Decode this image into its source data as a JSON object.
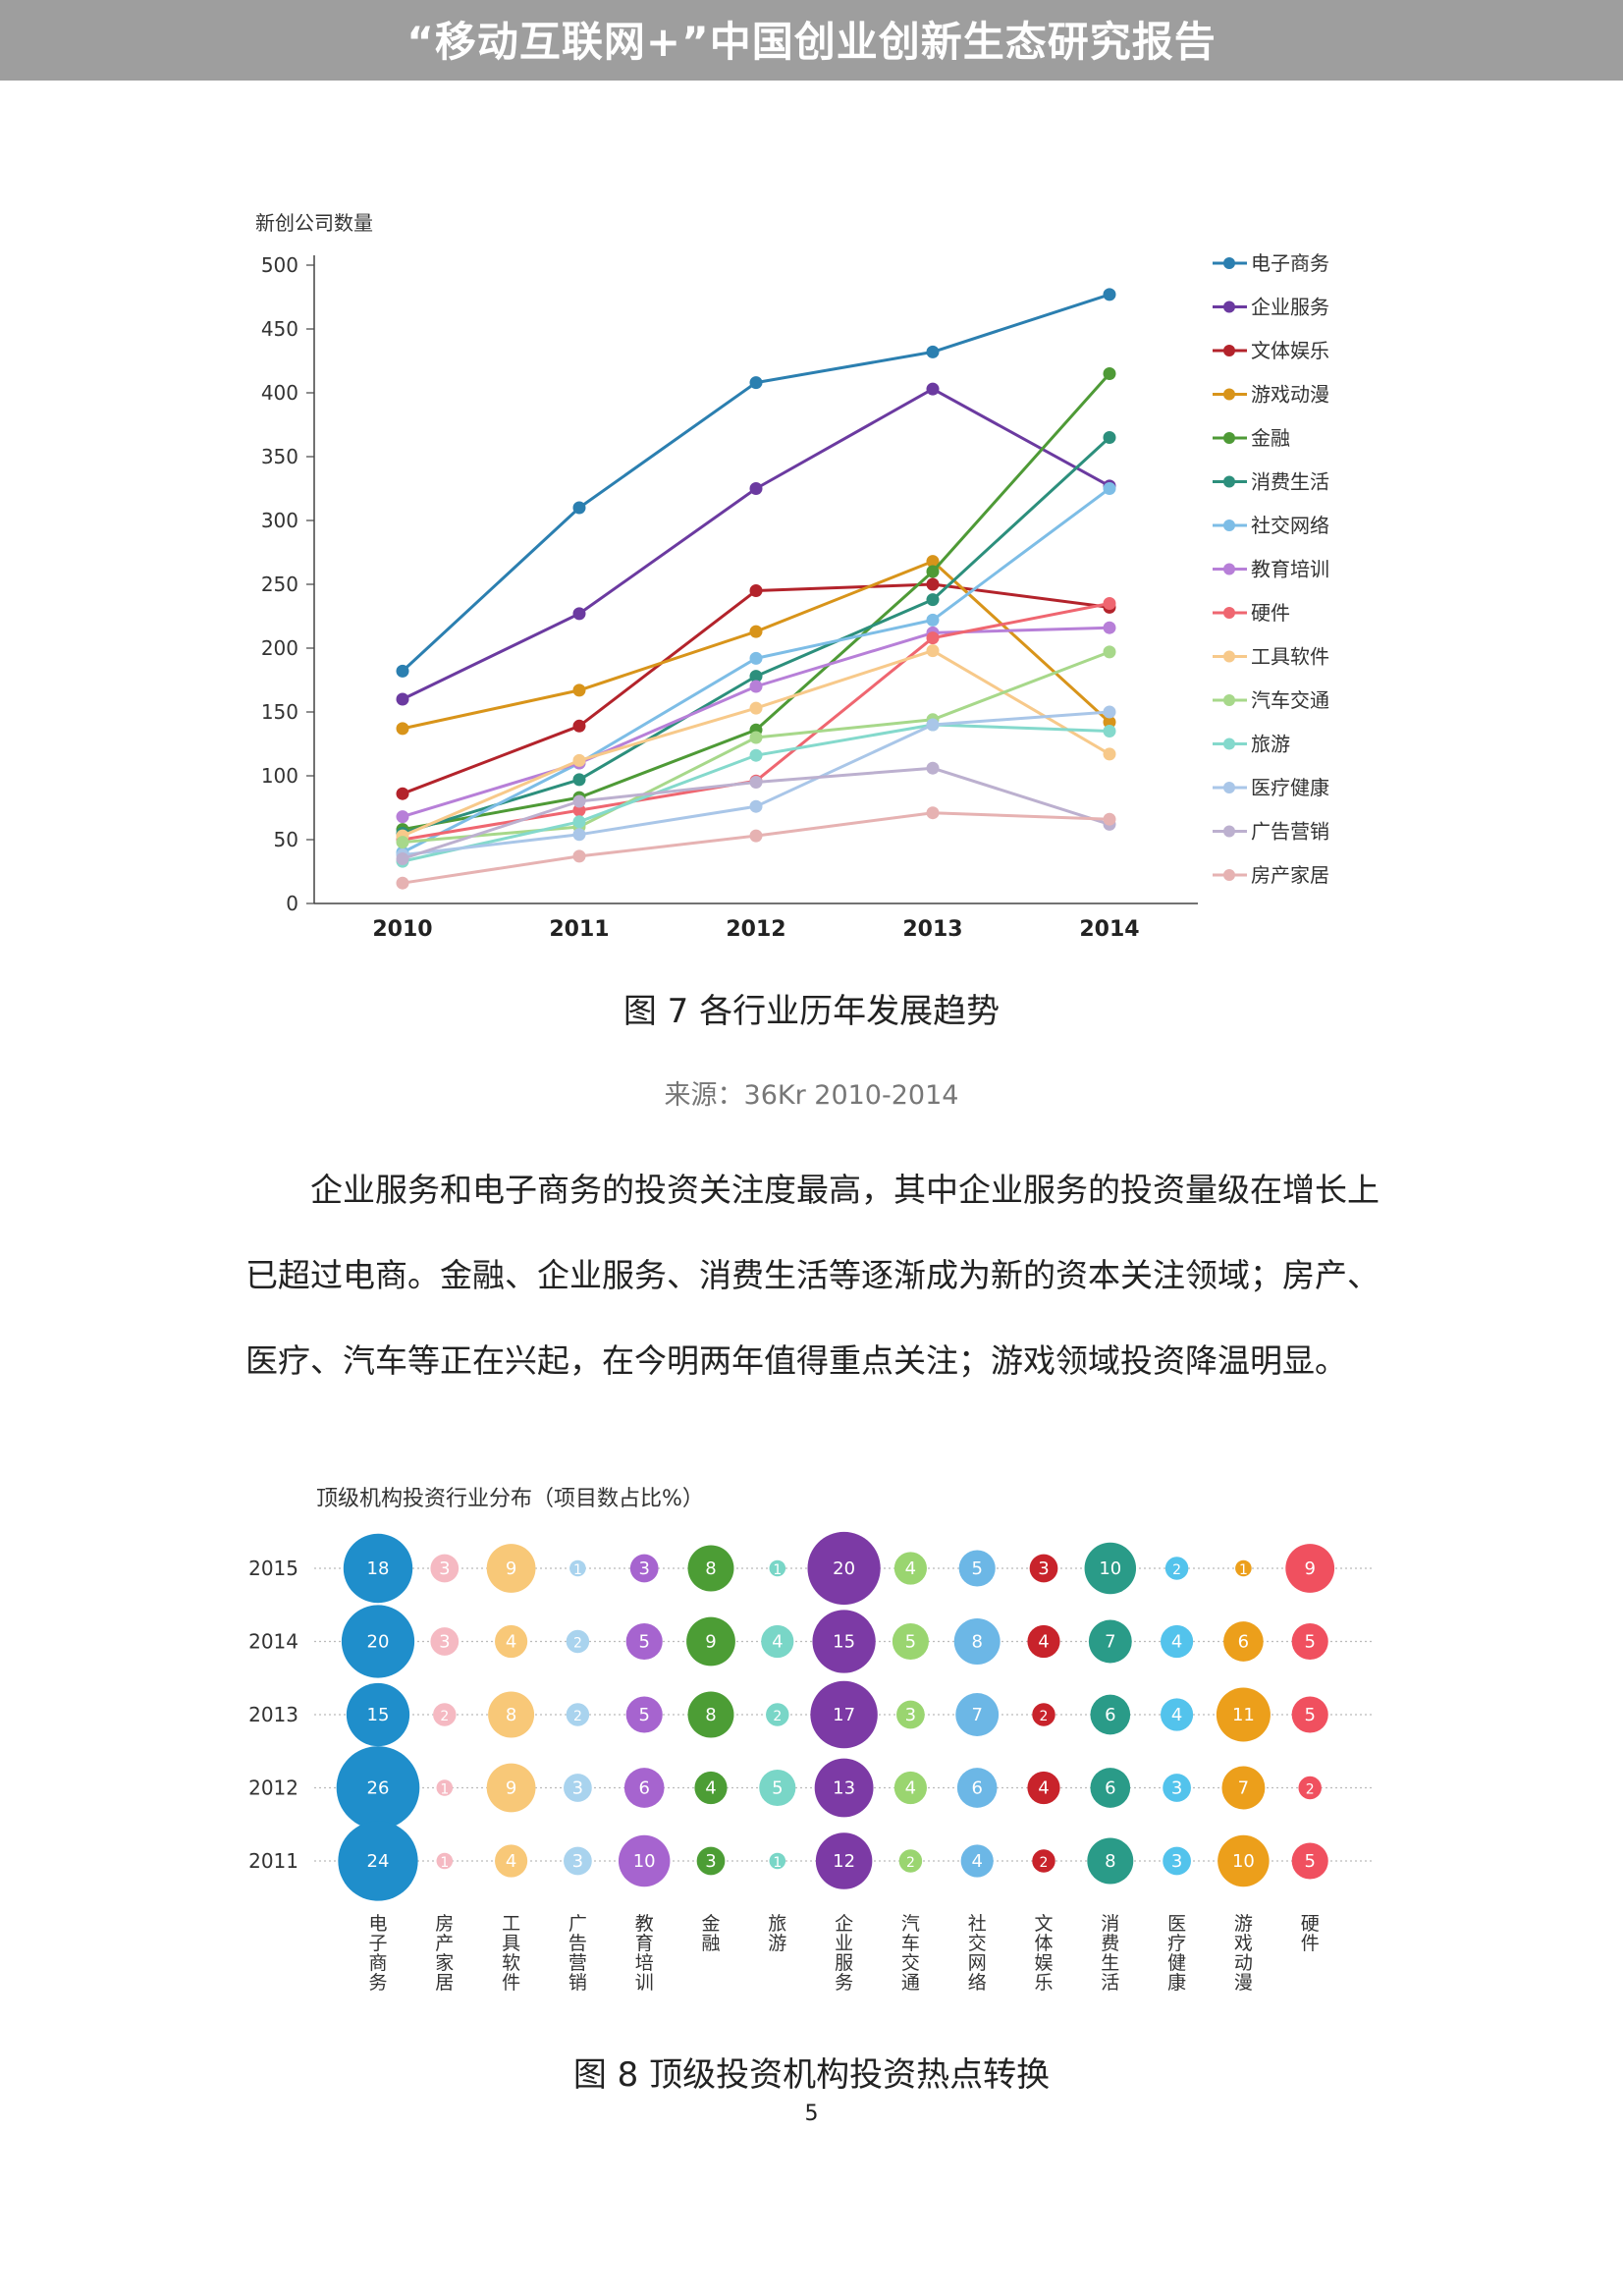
{
  "header": {
    "title": "“移动互联网+”中国创业创新生态研究报告"
  },
  "figure7": {
    "caption": "图 7  各行业历年发展趋势",
    "source": "来源：36Kr 2010-2014"
  },
  "paragraph": "企业服务和电子商务的投资关注度最高，其中企业服务的投资量级在增长上已超过电商。金融、企业服务、消费生活等逐渐成为新的资本关注领域；房产、医疗、汽车等正在兴起，在今明两年值得重点关注；游戏领域投资降温明显。",
  "figure8": {
    "caption": "图 8  顶级投资机构投资热点转换"
  },
  "page_number": "5",
  "chart_data": [
    {
      "type": "line",
      "title": "",
      "ylabel": "新创公司数量",
      "xlabel": "",
      "ylim": [
        0,
        500
      ],
      "yticks": [
        0,
        50,
        100,
        150,
        200,
        250,
        300,
        350,
        400,
        450,
        500
      ],
      "grid": false,
      "legend": "right",
      "x": [
        "2010",
        "2011",
        "2012",
        "2013",
        "2014"
      ],
      "series": [
        {
          "name": "电子商务",
          "color": "#2b7fb0",
          "values": [
            182,
            310,
            408,
            432,
            477
          ]
        },
        {
          "name": "企业服务",
          "color": "#6b3aa0",
          "values": [
            160,
            227,
            325,
            403,
            327
          ]
        },
        {
          "name": "文体娱乐",
          "color": "#b3232b",
          "values": [
            86,
            139,
            245,
            250,
            232
          ]
        },
        {
          "name": "游戏动漫",
          "color": "#d8941a",
          "values": [
            137,
            167,
            213,
            268,
            142
          ]
        },
        {
          "name": "金融",
          "color": "#4e9a36",
          "values": [
            58,
            83,
            136,
            260,
            415
          ]
        },
        {
          "name": "消费生活",
          "color": "#2c8f7c",
          "values": [
            55,
            97,
            178,
            238,
            365
          ]
        },
        {
          "name": "社交网络",
          "color": "#7dbde6",
          "values": [
            40,
            110,
            192,
            222,
            325
          ]
        },
        {
          "name": "教育培训",
          "color": "#b77fd8",
          "values": [
            68,
            110,
            170,
            212,
            216
          ]
        },
        {
          "name": "硬件",
          "color": "#ef6670",
          "values": [
            50,
            73,
            96,
            208,
            235
          ]
        },
        {
          "name": "工具软件",
          "color": "#f7c98a",
          "values": [
            53,
            112,
            153,
            198,
            117
          ]
        },
        {
          "name": "汽车交通",
          "color": "#a7d88a",
          "values": [
            48,
            60,
            130,
            144,
            197
          ]
        },
        {
          "name": "旅游",
          "color": "#84d9cc",
          "values": [
            33,
            64,
            116,
            140,
            135
          ]
        },
        {
          "name": "医疗健康",
          "color": "#a9c6e8",
          "values": [
            38,
            54,
            76,
            140,
            150
          ]
        },
        {
          "name": "广告营销",
          "color": "#bcb0cf",
          "values": [
            35,
            80,
            95,
            106,
            62
          ]
        },
        {
          "name": "房产家居",
          "color": "#e6b2b2",
          "values": [
            16,
            37,
            53,
            71,
            66
          ]
        }
      ]
    },
    {
      "type": "scatter",
      "subtype": "bubble",
      "title": "顶级机构投资行业分布（项目数占比%）",
      "rows": [
        "2015",
        "2014",
        "2013",
        "2012",
        "2011"
      ],
      "categories": [
        "电子商务",
        "房产家居",
        "工具软件",
        "广告营销",
        "教育培训",
        "金融",
        "旅游",
        "企业服务",
        "汽车交通",
        "社交网络",
        "文体娱乐",
        "消费生活",
        "医疗健康",
        "游戏动漫",
        "硬件"
      ],
      "colors": [
        "#1f8ecb",
        "#f5b9c2",
        "#f8c878",
        "#a9d3ee",
        "#a664cf",
        "#4c9d35",
        "#79d6c7",
        "#7c3aa5",
        "#9ad570",
        "#6cb7e6",
        "#c8232b",
        "#2a9b88",
        "#53c3ec",
        "#ec9f1b",
        "#f0505f"
      ],
      "values": [
        [
          18,
          3,
          9,
          1,
          3,
          8,
          1,
          20,
          4,
          5,
          3,
          10,
          2,
          1,
          9
        ],
        [
          20,
          3,
          4,
          2,
          5,
          9,
          4,
          15,
          5,
          8,
          4,
          7,
          4,
          6,
          5
        ],
        [
          15,
          2,
          8,
          2,
          5,
          8,
          2,
          17,
          3,
          7,
          2,
          6,
          4,
          11,
          5
        ],
        [
          26,
          1,
          9,
          3,
          6,
          4,
          5,
          13,
          4,
          6,
          4,
          6,
          3,
          7,
          2
        ],
        [
          24,
          1,
          4,
          3,
          10,
          3,
          1,
          12,
          2,
          4,
          2,
          8,
          3,
          10,
          5
        ]
      ]
    }
  ]
}
